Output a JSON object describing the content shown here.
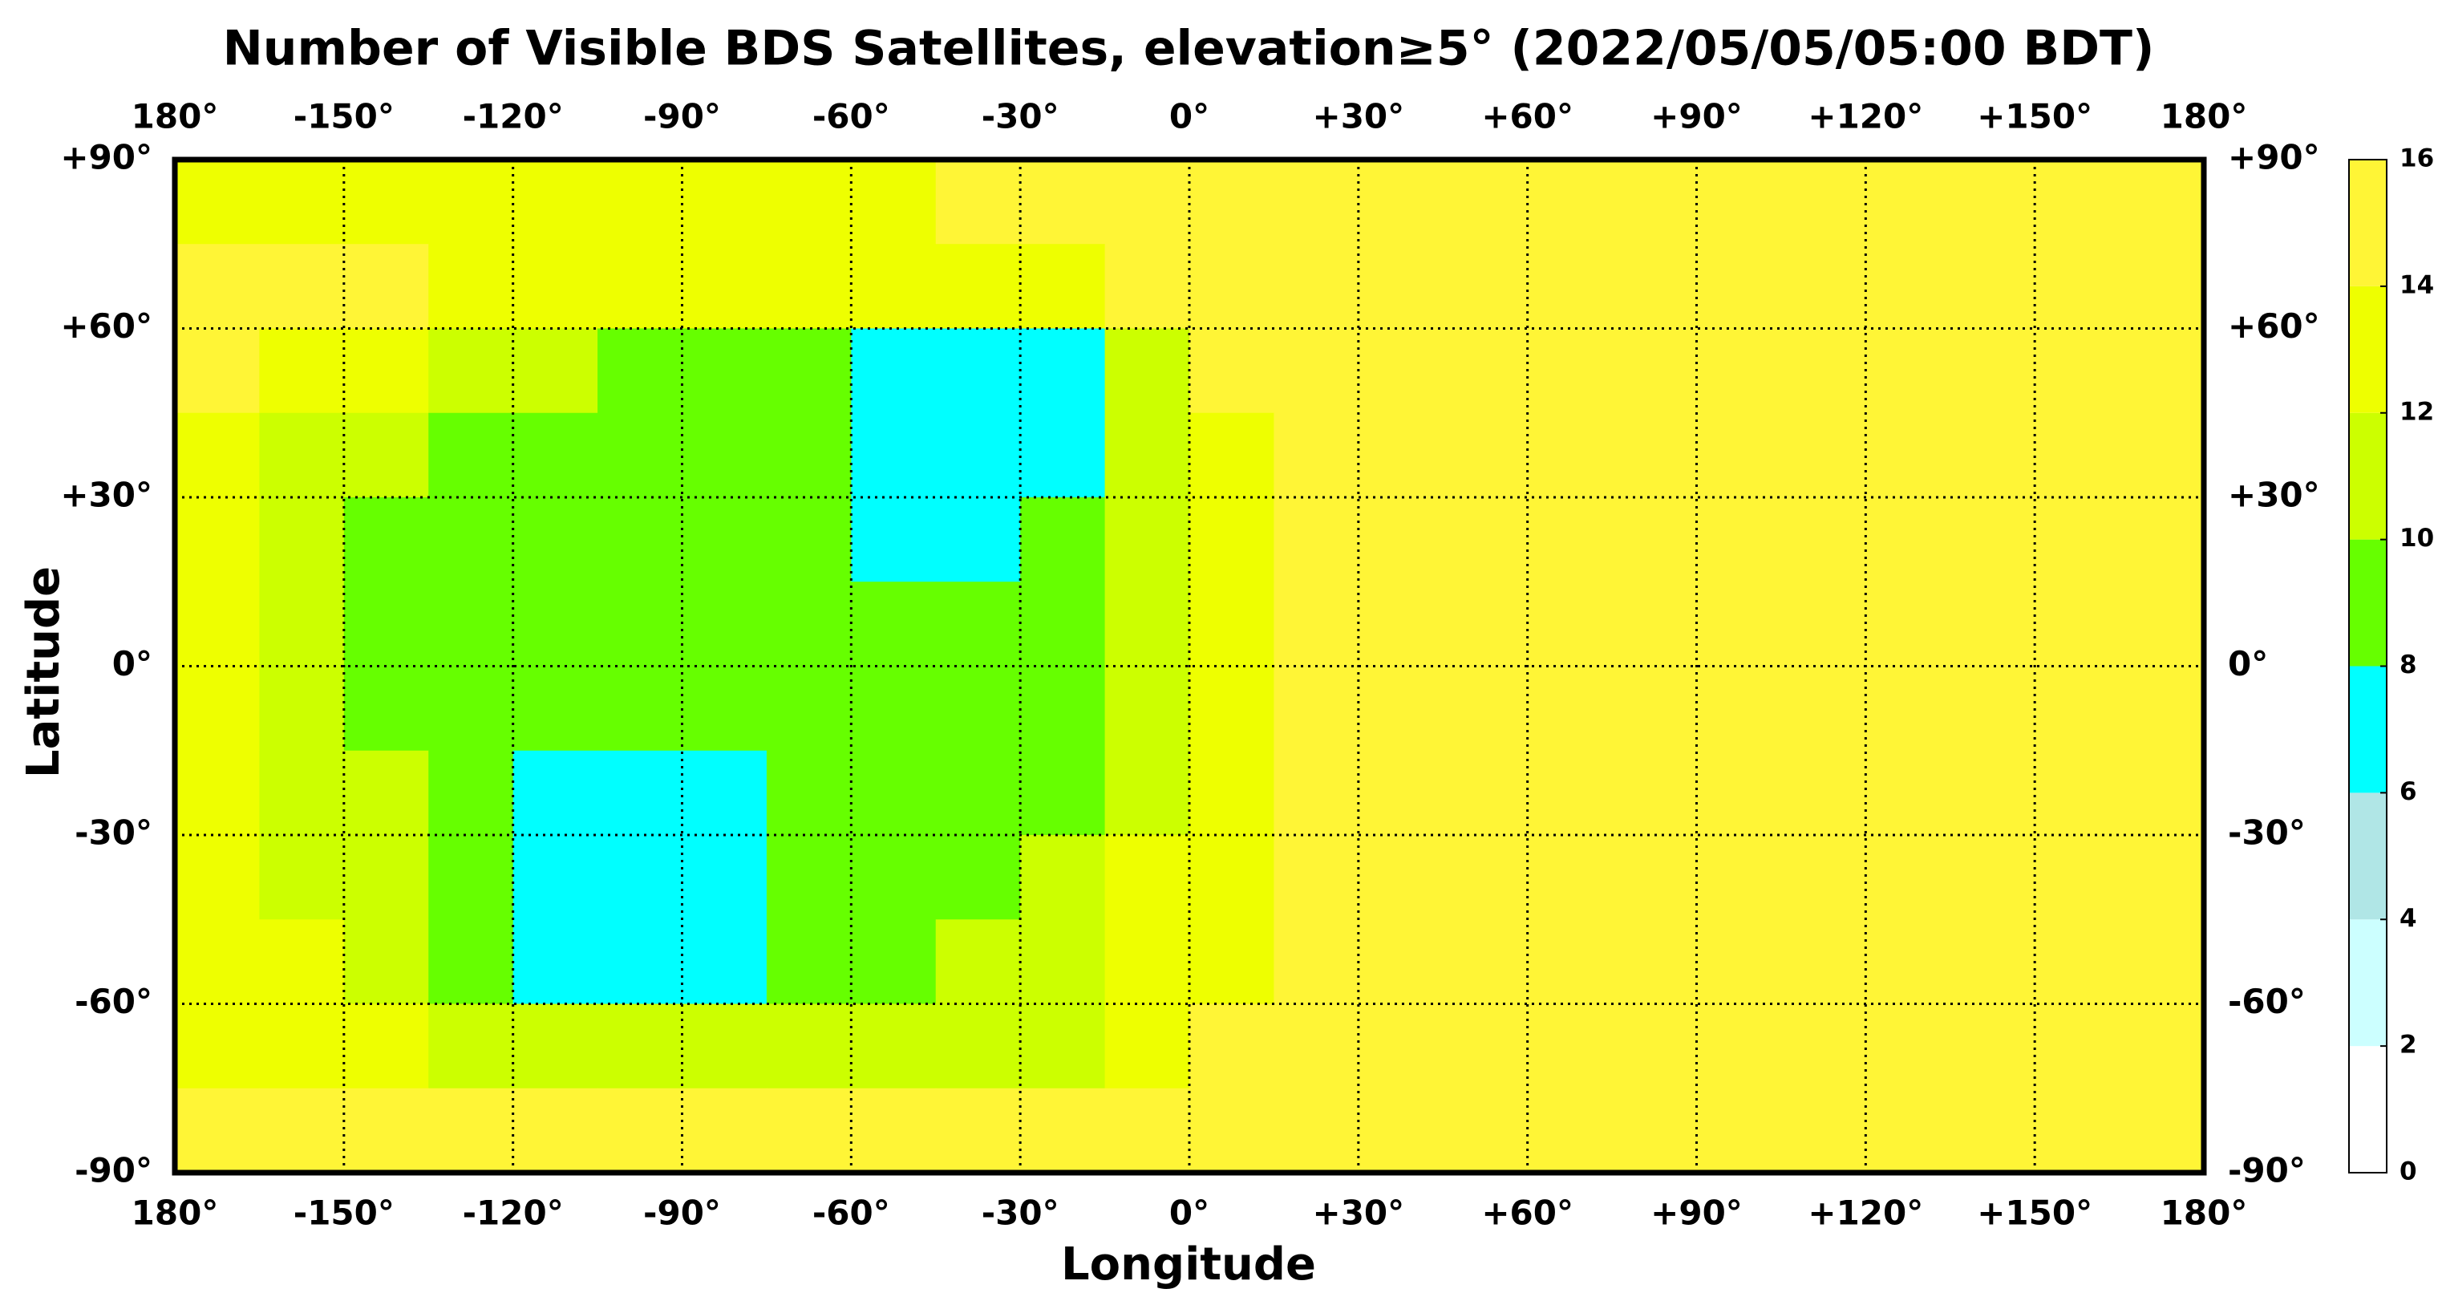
{
  "chart_data": {
    "type": "heatmap",
    "title": "Number of Visible BDS Satellites, elevation≥5° (2022/05/05/05:00 BDT)",
    "x_label": "Longitude",
    "y_label": "Latitude",
    "xlim": [
      -180,
      180
    ],
    "ylim": [
      -90,
      90
    ],
    "xticks": [
      {
        "value": -180,
        "label": "180°"
      },
      {
        "value": -150,
        "label": "-150°"
      },
      {
        "value": -120,
        "label": "-120°"
      },
      {
        "value": -90,
        "label": "-90°"
      },
      {
        "value": -60,
        "label": "-60°"
      },
      {
        "value": -30,
        "label": "-30°"
      },
      {
        "value": 0,
        "label": "0°"
      },
      {
        "value": 30,
        "label": "+30°"
      },
      {
        "value": 60,
        "label": "+60°"
      },
      {
        "value": 90,
        "label": "+90°"
      },
      {
        "value": 120,
        "label": "+120°"
      },
      {
        "value": 150,
        "label": "+150°"
      },
      {
        "value": 180,
        "label": "180°"
      }
    ],
    "yticks": [
      {
        "value": 90,
        "label": "+90°"
      },
      {
        "value": 60,
        "label": "+60°"
      },
      {
        "value": 30,
        "label": "+30°"
      },
      {
        "value": 0,
        "label": "0°"
      },
      {
        "value": -30,
        "label": "-30°"
      },
      {
        "value": -60,
        "label": "-60°"
      },
      {
        "value": -90,
        "label": "-90°"
      }
    ],
    "grid": true,
    "x": [
      -172.5,
      -157.5,
      -142.5,
      -127.5,
      -112.5,
      -97.5,
      -82.5,
      -67.5,
      -52.5,
      -37.5,
      -22.5,
      -7.5,
      7.5,
      22.5,
      37.5,
      52.5,
      67.5,
      82.5,
      97.5,
      112.5,
      127.5,
      142.5,
      157.5,
      172.5
    ],
    "y": [
      82.5,
      67.5,
      52.5,
      37.5,
      22.5,
      7.5,
      -7.5,
      -22.5,
      -37.5,
      -52.5,
      -67.5,
      -82.5
    ],
    "z": [
      [
        13,
        13,
        13,
        13,
        13,
        13,
        13,
        13,
        13,
        15,
        15,
        15,
        15,
        15,
        15,
        15,
        15,
        15,
        15,
        15,
        15,
        15,
        15,
        15
      ],
      [
        15,
        15,
        15,
        13,
        13,
        13,
        13,
        13,
        13,
        13,
        13,
        15,
        15,
        15,
        15,
        15,
        15,
        15,
        15,
        15,
        15,
        15,
        15,
        15
      ],
      [
        15,
        13,
        13,
        11,
        11,
        9,
        9,
        9,
        7,
        7,
        7,
        11,
        15,
        15,
        15,
        15,
        15,
        15,
        15,
        15,
        15,
        15,
        15,
        15
      ],
      [
        13,
        11,
        11,
        9,
        9,
        9,
        9,
        9,
        7,
        7,
        7,
        11,
        13,
        15,
        15,
        15,
        15,
        15,
        15,
        15,
        15,
        15,
        15,
        15
      ],
      [
        13,
        11,
        9,
        9,
        9,
        9,
        9,
        9,
        7,
        7,
        9,
        11,
        13,
        15,
        15,
        15,
        15,
        15,
        15,
        15,
        15,
        15,
        15,
        15
      ],
      [
        13,
        11,
        9,
        9,
        9,
        9,
        9,
        9,
        9,
        9,
        9,
        11,
        13,
        15,
        15,
        15,
        15,
        15,
        15,
        15,
        15,
        15,
        15,
        15
      ],
      [
        13,
        11,
        9,
        9,
        9,
        9,
        9,
        9,
        9,
        9,
        9,
        11,
        13,
        15,
        15,
        15,
        15,
        15,
        15,
        15,
        15,
        15,
        15,
        15
      ],
      [
        13,
        11,
        11,
        9,
        7,
        7,
        7,
        9,
        9,
        9,
        9,
        11,
        13,
        15,
        15,
        15,
        15,
        15,
        15,
        15,
        15,
        15,
        15,
        15
      ],
      [
        13,
        11,
        11,
        9,
        7,
        7,
        7,
        9,
        9,
        9,
        11,
        13,
        13,
        15,
        15,
        15,
        15,
        15,
        15,
        15,
        15,
        15,
        15,
        15
      ],
      [
        13,
        13,
        11,
        9,
        7,
        7,
        7,
        9,
        9,
        11,
        11,
        13,
        13,
        15,
        15,
        15,
        15,
        15,
        15,
        15,
        15,
        15,
        15,
        15
      ],
      [
        13,
        13,
        13,
        11,
        11,
        11,
        11,
        11,
        11,
        11,
        11,
        13,
        15,
        15,
        15,
        15,
        15,
        15,
        15,
        15,
        15,
        15,
        15,
        15
      ],
      [
        15,
        15,
        15,
        15,
        15,
        15,
        15,
        15,
        15,
        15,
        15,
        15,
        15,
        15,
        15,
        15,
        15,
        15,
        15,
        15,
        15,
        15,
        15,
        15
      ]
    ],
    "colorbar": {
      "ticks": [
        0,
        2,
        4,
        6,
        8,
        10,
        12,
        14,
        16
      ],
      "colors": [
        "#ffffff",
        "#ccffff",
        "#b0e6e6",
        "#00ffff",
        "#66ff00",
        "#ccff00",
        "#eeff00",
        "#fff536"
      ]
    }
  }
}
